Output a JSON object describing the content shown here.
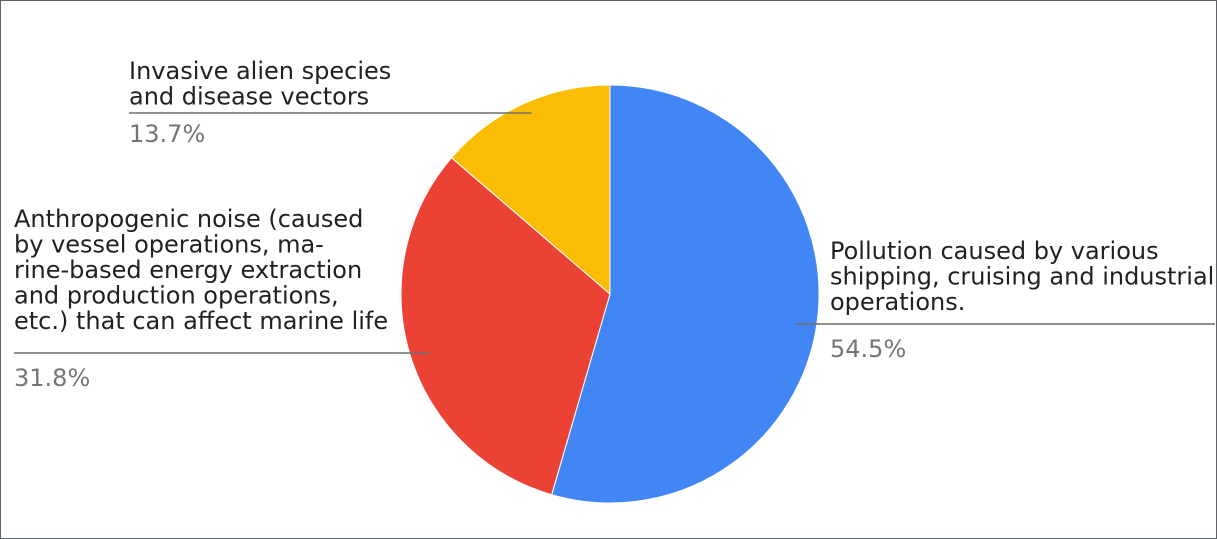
{
  "chart_data": {
    "type": "pie",
    "start_angle_deg": 0,
    "direction": "clockwise",
    "slices": [
      {
        "label": "Pollution caused by various shipping, cruising and industrial operations.",
        "label_lines": [
          "Pollution caused by various",
          "shipping, cruising and industrial",
          "operations."
        ],
        "value": 54.5,
        "value_label": "54.5%",
        "color": "#4285f4"
      },
      {
        "label": "Anthropogenic noise (caused by vessel operations, marine-based energy extraction and production operations, etc.) that can affect marine life",
        "label_lines": [
          "Anthropogenic noise (caused",
          "by vessel operations, ma-",
          "rine-based energy extraction",
          "and production operations,",
          "etc.) that can affect marine life"
        ],
        "value": 31.8,
        "value_label": "31.8%",
        "color": "#ea4335"
      },
      {
        "label": "Invasive alien species and disease vectors",
        "label_lines": [
          "Invasive alien species",
          "and disease vectors"
        ],
        "value": 13.7,
        "value_label": "13.7%",
        "color": "#fbbc04"
      }
    ],
    "legend": "labels-with-leader-lines"
  }
}
